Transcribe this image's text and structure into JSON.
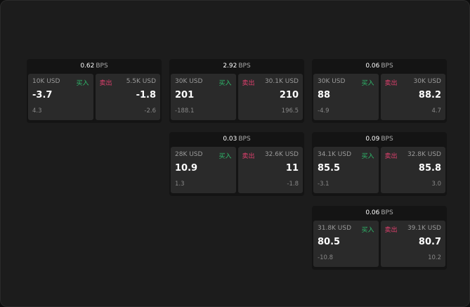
{
  "unit": "BPS",
  "buy_label": "买入",
  "sell_label": "卖出",
  "cards": [
    {
      "spread": "0.62",
      "buy": {
        "size": "10K USD",
        "price": "-3.7",
        "change": "4.3"
      },
      "sell": {
        "size": "5.5K USD",
        "price": "-1.8",
        "change": "-2.6"
      }
    },
    {
      "spread": "2.92",
      "buy": {
        "size": "30K USD",
        "price": "201",
        "change": "-188.1"
      },
      "sell": {
        "size": "30.1K USD",
        "price": "210",
        "change": "196.5"
      }
    },
    {
      "spread": "0.06",
      "buy": {
        "size": "30K USD",
        "price": "88",
        "change": "-4.9"
      },
      "sell": {
        "size": "30K USD",
        "price": "88.2",
        "change": "4.7"
      }
    },
    {
      "spread": "0.03",
      "buy": {
        "size": "28K USD",
        "price": "10.9",
        "change": "1.3"
      },
      "sell": {
        "size": "32.6K USD",
        "price": "11",
        "change": "-1.8"
      }
    },
    {
      "spread": "0.09",
      "buy": {
        "size": "34.1K USD",
        "price": "85.5",
        "change": "-3.1"
      },
      "sell": {
        "size": "32.8K USD",
        "price": "85.8",
        "change": "3.0"
      }
    },
    {
      "spread": "0.06",
      "buy": {
        "size": "31.8K USD",
        "price": "80.5",
        "change": "-10.8"
      },
      "sell": {
        "size": "39.1K USD",
        "price": "80.7",
        "change": "10.2"
      }
    }
  ]
}
